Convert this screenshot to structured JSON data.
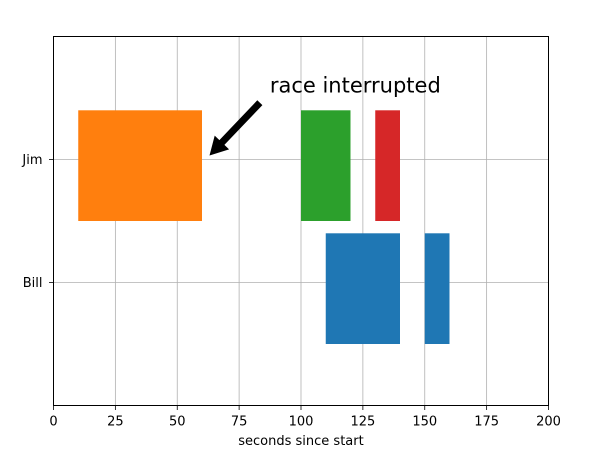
{
  "chart_data": {
    "type": "broken_barh",
    "title": "",
    "xlabel": "seconds since start",
    "ylabel": "",
    "xlim": [
      0,
      200
    ],
    "ylim": [
      5,
      35
    ],
    "x_ticks": [
      0,
      25,
      50,
      75,
      100,
      125,
      150,
      175,
      200
    ],
    "y_ticks": [
      {
        "value": 15,
        "label": "Bill"
      },
      {
        "value": 25,
        "label": "Jim"
      }
    ],
    "grid": true,
    "series": [
      {
        "row": "Bill",
        "y_start": 10,
        "height": 9,
        "color": "#1f77b4",
        "segments": [
          {
            "start": 110,
            "width": 30
          },
          {
            "start": 150,
            "width": 10
          }
        ]
      },
      {
        "row": "Jim",
        "y_start": 20,
        "height": 9,
        "color": "#ff7f0e",
        "segments": [
          {
            "start": 10,
            "width": 50
          }
        ]
      },
      {
        "row": "Jim",
        "y_start": 20,
        "height": 9,
        "color": "#2ca02c",
        "segments": [
          {
            "start": 100,
            "width": 20
          }
        ]
      },
      {
        "row": "Jim",
        "y_start": 20,
        "height": 9,
        "color": "#d62728",
        "segments": [
          {
            "start": 130,
            "width": 10
          }
        ]
      }
    ],
    "annotation": {
      "text": "race interrupted",
      "point": [
        61,
        25
      ],
      "text_anchor": [
        87,
        31
      ]
    }
  }
}
